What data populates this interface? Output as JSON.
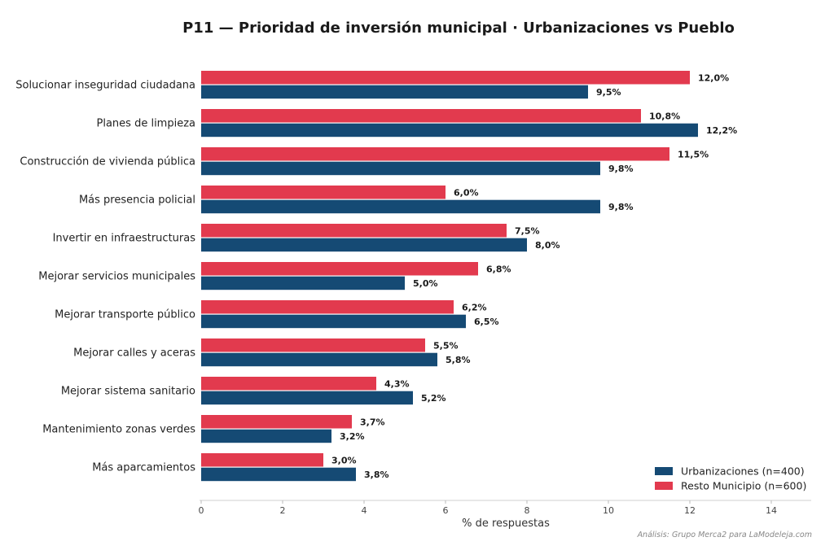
{
  "chart_data": {
    "type": "bar",
    "orientation": "horizontal",
    "title": "P11 — Prioridad de inversión municipal · Urbanizaciones vs Pueblo",
    "xlabel": "% de respuestas",
    "ylabel": "",
    "xlim": [
      0,
      14
    ],
    "xticks": [
      0,
      2,
      4,
      6,
      8,
      10,
      12,
      14
    ],
    "grid": false,
    "legend_position": "bottom-right",
    "categories": [
      "Solucionar inseguridad ciudadana",
      "Planes de limpieza",
      "Construcción de vivienda pública",
      "Más presencia policial",
      "Invertir en infraestructuras",
      "Mejorar servicios municipales",
      "Mejorar transporte público",
      "Mejorar calles y aceras",
      "Mejorar sistema sanitario",
      "Mantenimiento zonas verdes",
      "Más aparcamientos"
    ],
    "series": [
      {
        "name": "Resto Municipio (n=600)",
        "color": "#e23a4e",
        "values": [
          12.0,
          10.8,
          11.5,
          6.0,
          7.5,
          6.8,
          6.2,
          5.5,
          4.3,
          3.7,
          3.0
        ],
        "labels": [
          "12,0%",
          "10,8%",
          "11,5%",
          "6,0%",
          "7,5%",
          "6,8%",
          "6,2%",
          "5,5%",
          "4,3%",
          "3,7%",
          "3,0%"
        ]
      },
      {
        "name": "Urbanizaciones (n=400)",
        "color": "#154a74",
        "values": [
          9.5,
          12.2,
          9.8,
          9.8,
          8.0,
          5.0,
          6.5,
          5.8,
          5.2,
          3.2,
          3.8
        ],
        "labels": [
          "9,5%",
          "12,2%",
          "9,8%",
          "9,8%",
          "8,0%",
          "5,0%",
          "6,5%",
          "5,8%",
          "5,2%",
          "3,2%",
          "3,8%"
        ]
      }
    ],
    "legend": [
      {
        "name": "Urbanizaciones (n=400)",
        "color": "#154a74"
      },
      {
        "name": "Resto Municipio (n=600)",
        "color": "#e23a4e"
      }
    ],
    "annotation": "Análisis: Grupo Merca2 para LaModeleja.com"
  }
}
